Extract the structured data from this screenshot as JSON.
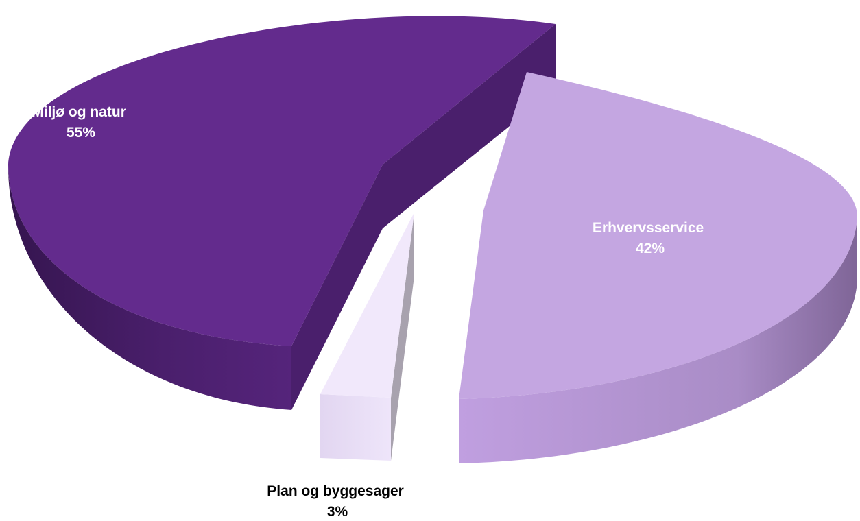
{
  "chart_data": {
    "type": "pie",
    "title": "",
    "slices": [
      {
        "label": "Miljø og natur",
        "value": 55,
        "value_label": "55%",
        "color": "#632B8D"
      },
      {
        "label": "Erhvervsservice",
        "value": 42,
        "value_label": "42%",
        "color": "#C4A6E1"
      },
      {
        "label": "Plan og byggesager",
        "value": 3,
        "value_label": "3%",
        "color": "#F1E8FB"
      }
    ],
    "legend": "none",
    "exploded": true,
    "style": "3d"
  }
}
